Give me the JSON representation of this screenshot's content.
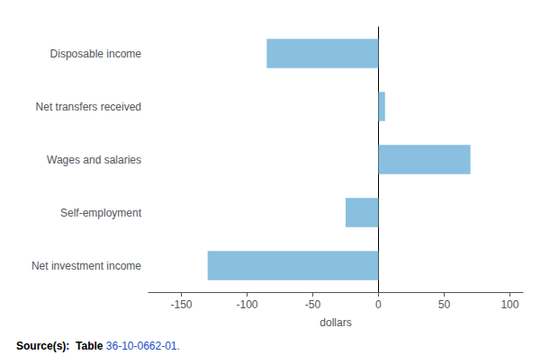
{
  "chart_data": {
    "type": "bar",
    "orientation": "horizontal",
    "categories": [
      "Net investment income",
      "Self-employment",
      "Wages and salaries",
      "Net transfers received",
      "Disposable income"
    ],
    "values": [
      -130,
      -25,
      70,
      5,
      -85
    ],
    "color": "#89bfdf",
    "xlabel": "dollars",
    "xlim": [
      -175,
      110
    ],
    "xticks": [
      -150,
      -100,
      -50,
      0,
      50,
      100
    ],
    "grid": false,
    "annotations": [
      "Source(s):  Table",
      "36-10-0662-01."
    ]
  }
}
